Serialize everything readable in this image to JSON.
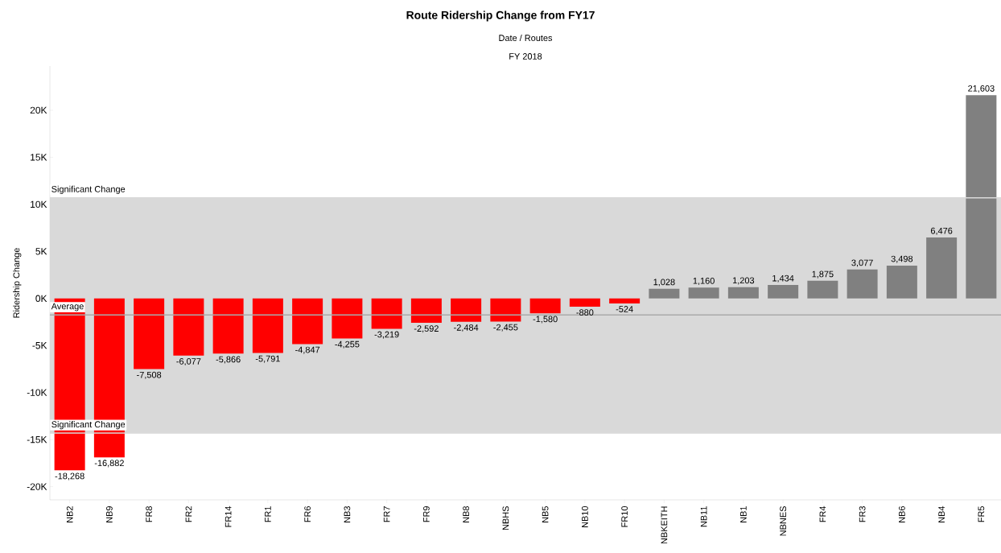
{
  "chart_data": {
    "type": "bar",
    "title": "Route Ridership Change from FY17",
    "subtitle": "Date  /  Routes",
    "ylabel": "Ridership Change",
    "annotations": [
      "FY 2018"
    ],
    "categories": [
      "NB2",
      "NB9",
      "FR8",
      "FR2",
      "FR14",
      "FR1",
      "FR6",
      "NB3",
      "FR7",
      "FR9",
      "NB8",
      "NBHS",
      "NB5",
      "NB10",
      "FR10",
      "NBKEITH",
      "NB11",
      "NB1",
      "NBNES",
      "FR4",
      "FR3",
      "NB6",
      "NB4",
      "FR5"
    ],
    "values": [
      -18268,
      -16882,
      -7508,
      -6077,
      -5866,
      -5791,
      -4847,
      -4255,
      -3219,
      -2592,
      -2484,
      -2455,
      -1580,
      -880,
      -524,
      1028,
      1160,
      1203,
      1434,
      1875,
      3077,
      3498,
      6476,
      21603
    ],
    "value_labels": [
      "-18,268",
      "-16,882",
      "-7,508",
      "-6,077",
      "-5,866",
      "-5,791",
      "-4,847",
      "-4,255",
      "-3,219",
      "-2,592",
      "-2,484",
      "-2,455",
      "-1,580",
      "-880",
      "-524",
      "1,028",
      "1,160",
      "1,203",
      "1,434",
      "1,875",
      "3,077",
      "3,498",
      "6,476",
      "21,603"
    ],
    "colors": [
      "#ff0000",
      "#ff0000",
      "#ff0000",
      "#ff0000",
      "#ff0000",
      "#ff0000",
      "#ff0000",
      "#ff0000",
      "#ff0000",
      "#ff0000",
      "#ff0000",
      "#ff0000",
      "#ff0000",
      "#ff0000",
      "#ff0000",
      "#808080",
      "#808080",
      "#808080",
      "#808080",
      "#808080",
      "#808080",
      "#808080",
      "#808080",
      "#808080"
    ],
    "ylim": [
      -21400,
      24700
    ],
    "yticks": [
      {
        "value": -20000,
        "label": "-20K"
      },
      {
        "value": -15000,
        "label": "-15K"
      },
      {
        "value": -10000,
        "label": "-10K"
      },
      {
        "value": -5000,
        "label": "-5K"
      },
      {
        "value": 0,
        "label": "0K"
      },
      {
        "value": 5000,
        "label": "5K"
      },
      {
        "value": 10000,
        "label": "10K"
      },
      {
        "value": 15000,
        "label": "15K"
      },
      {
        "value": 20000,
        "label": "20K"
      }
    ],
    "bands": [
      {
        "axis": "y",
        "from": -14300,
        "to": 10700,
        "color": "#d9d9d9"
      }
    ],
    "ref_lines": [
      {
        "axis": "y",
        "value": -1745,
        "label": "Average",
        "color": "#aaaaaa"
      },
      {
        "axis": "y",
        "value": 10700,
        "label": "Significant Change",
        "color": "#d9d9d9"
      },
      {
        "axis": "y",
        "value": -14300,
        "label": "Significant Change",
        "color": "#d9d9d9"
      }
    ],
    "grid": false
  }
}
